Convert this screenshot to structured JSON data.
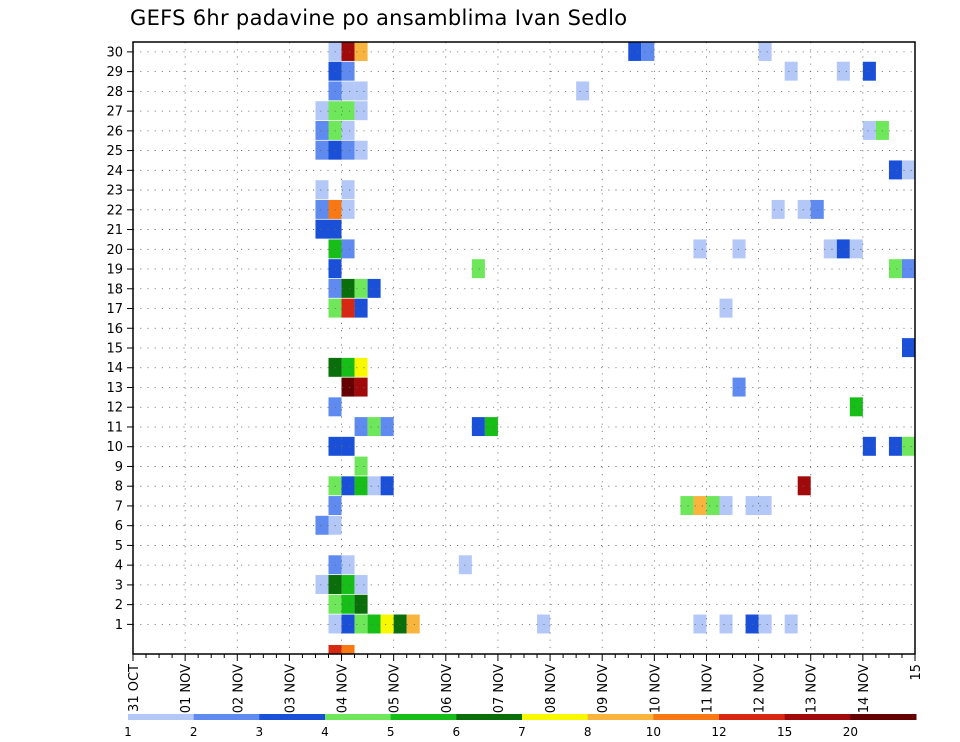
{
  "chart_data": {
    "type": "heatmap",
    "title": "GEFS 6hr padavine po ansamblima Ivan Sedlo",
    "xlabel": "",
    "ylabel": "",
    "x_range_days": [
      0,
      15
    ],
    "y_range": [
      0,
      30
    ],
    "x_step_hours": 6,
    "y_ticks": [
      1,
      2,
      3,
      4,
      5,
      6,
      7,
      8,
      9,
      10,
      11,
      12,
      13,
      14,
      15,
      16,
      17,
      18,
      19,
      20,
      21,
      22,
      23,
      24,
      25,
      26,
      27,
      28,
      29,
      30
    ],
    "x_tick_labels": [
      "31 OCT",
      "01 NOV",
      "02 NOV",
      "03 NOV",
      "04 NOV",
      "05 NOV",
      "06 NOV",
      "07 NOV",
      "08 NOV",
      "09 NOV",
      "10 NOV",
      "11 NOV",
      "12 NOV",
      "13 NOV",
      "14 NOV",
      "15"
    ],
    "legend": {
      "colors": [
        "#b4c8f8",
        "#5f8af0",
        "#1a4fd8",
        "#6ee85a",
        "#18be18",
        "#0a6e0a",
        "#f8f800",
        "#f8b43c",
        "#f87814",
        "#d82814",
        "#a00a0a",
        "#640000"
      ],
      "labels": [
        "1",
        "2",
        "3",
        "4",
        "5",
        "6",
        "7",
        "8",
        "10",
        "12",
        "15",
        "20"
      ]
    },
    "bottom_row_cells": [
      {
        "x": 3.75,
        "level": 9
      },
      {
        "x": 4.0,
        "level": 8
      }
    ],
    "members": [
      {
        "member": 1,
        "cells": [
          [
            3.75,
            0
          ],
          [
            4.0,
            2
          ],
          [
            4.25,
            3
          ],
          [
            4.5,
            4
          ],
          [
            4.75,
            6
          ],
          [
            5.0,
            5
          ],
          [
            5.25,
            7
          ],
          [
            7.75,
            0
          ],
          [
            10.75,
            0
          ],
          [
            11.25,
            0
          ],
          [
            11.75,
            2
          ],
          [
            12.0,
            0
          ],
          [
            12.5,
            0
          ]
        ]
      },
      {
        "member": 2,
        "cells": [
          [
            3.75,
            3
          ],
          [
            4.0,
            4
          ],
          [
            4.25,
            5
          ]
        ]
      },
      {
        "member": 3,
        "cells": [
          [
            3.5,
            0
          ],
          [
            3.75,
            5
          ],
          [
            4.0,
            4
          ],
          [
            4.25,
            0
          ]
        ]
      },
      {
        "member": 4,
        "cells": [
          [
            3.75,
            1
          ],
          [
            4.0,
            0
          ],
          [
            6.25,
            0
          ]
        ]
      },
      {
        "member": 6,
        "cells": [
          [
            3.5,
            1
          ],
          [
            3.75,
            0
          ]
        ]
      },
      {
        "member": 7,
        "cells": [
          [
            3.75,
            1
          ],
          [
            10.5,
            3
          ],
          [
            10.75,
            7
          ],
          [
            11.0,
            3
          ],
          [
            11.25,
            0
          ],
          [
            11.75,
            0
          ],
          [
            12.0,
            0
          ]
        ]
      },
      {
        "member": 8,
        "cells": [
          [
            3.75,
            3
          ],
          [
            4.0,
            2
          ],
          [
            4.25,
            4
          ],
          [
            4.5,
            0
          ],
          [
            4.75,
            2
          ],
          [
            12.75,
            10
          ]
        ]
      },
      {
        "member": 9,
        "cells": [
          [
            4.25,
            3
          ]
        ]
      },
      {
        "member": 10,
        "cells": [
          [
            3.75,
            2
          ],
          [
            4.0,
            2
          ],
          [
            14.0,
            2
          ],
          [
            14.5,
            2
          ],
          [
            14.75,
            3
          ]
        ]
      },
      {
        "member": 11,
        "cells": [
          [
            4.25,
            1
          ],
          [
            4.5,
            3
          ],
          [
            4.75,
            1
          ],
          [
            6.5,
            2
          ],
          [
            6.75,
            4
          ]
        ]
      },
      {
        "member": 12,
        "cells": [
          [
            3.75,
            1
          ],
          [
            13.75,
            4
          ]
        ]
      },
      {
        "member": 13,
        "cells": [
          [
            4.0,
            11
          ],
          [
            4.25,
            10
          ],
          [
            11.5,
            1
          ]
        ]
      },
      {
        "member": 14,
        "cells": [
          [
            3.75,
            5
          ],
          [
            4.0,
            4
          ],
          [
            4.25,
            6
          ]
        ]
      },
      {
        "member": 15,
        "cells": [
          [
            14.75,
            2
          ]
        ]
      },
      {
        "member": 17,
        "cells": [
          [
            3.75,
            3
          ],
          [
            4.0,
            9
          ],
          [
            4.25,
            2
          ],
          [
            11.25,
            0
          ]
        ]
      },
      {
        "member": 18,
        "cells": [
          [
            3.75,
            1
          ],
          [
            4.0,
            5
          ],
          [
            4.25,
            3
          ],
          [
            4.5,
            2
          ]
        ]
      },
      {
        "member": 19,
        "cells": [
          [
            3.75,
            2
          ],
          [
            6.5,
            3
          ],
          [
            14.5,
            3
          ],
          [
            14.75,
            1
          ]
        ]
      },
      {
        "member": 20,
        "cells": [
          [
            3.75,
            4
          ],
          [
            4.0,
            1
          ],
          [
            10.75,
            0
          ],
          [
            11.5,
            0
          ],
          [
            13.25,
            0
          ],
          [
            13.5,
            2
          ],
          [
            13.75,
            0
          ]
        ]
      },
      {
        "member": 21,
        "cells": [
          [
            3.5,
            2
          ],
          [
            3.75,
            2
          ]
        ]
      },
      {
        "member": 22,
        "cells": [
          [
            3.5,
            1
          ],
          [
            3.75,
            8
          ],
          [
            4.0,
            0
          ],
          [
            12.25,
            0
          ],
          [
            12.75,
            0
          ],
          [
            13.0,
            1
          ]
        ]
      },
      {
        "member": 23,
        "cells": [
          [
            3.5,
            0
          ],
          [
            4.0,
            0
          ]
        ]
      },
      {
        "member": 24,
        "cells": [
          [
            14.5,
            2
          ],
          [
            14.75,
            0
          ]
        ]
      },
      {
        "member": 25,
        "cells": [
          [
            3.5,
            1
          ],
          [
            3.75,
            2
          ],
          [
            4.0,
            1
          ],
          [
            4.25,
            0
          ]
        ]
      },
      {
        "member": 26,
        "cells": [
          [
            3.5,
            1
          ],
          [
            3.75,
            3
          ],
          [
            4.0,
            0
          ],
          [
            14.0,
            0
          ],
          [
            14.25,
            3
          ]
        ]
      },
      {
        "member": 27,
        "cells": [
          [
            3.5,
            0
          ],
          [
            3.75,
            3
          ],
          [
            4.0,
            3
          ],
          [
            4.25,
            0
          ]
        ]
      },
      {
        "member": 28,
        "cells": [
          [
            3.75,
            1
          ],
          [
            4.0,
            0
          ],
          [
            4.25,
            0
          ],
          [
            8.5,
            0
          ]
        ]
      },
      {
        "member": 29,
        "cells": [
          [
            3.75,
            2
          ],
          [
            4.0,
            1
          ],
          [
            12.5,
            0
          ],
          [
            13.5,
            0
          ],
          [
            14.0,
            2
          ]
        ]
      },
      {
        "member": 30,
        "cells": [
          [
            3.75,
            0
          ],
          [
            4.0,
            10
          ],
          [
            4.25,
            7
          ],
          [
            9.5,
            2
          ],
          [
            9.75,
            1
          ],
          [
            12.0,
            0
          ]
        ]
      }
    ]
  }
}
